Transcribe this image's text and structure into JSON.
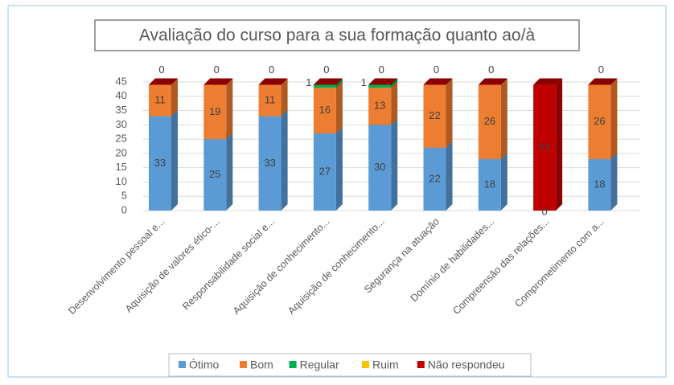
{
  "chart_data": {
    "type": "bar3d_stacked",
    "title": "Avaliação do curso para a sua formação quanto ao/à",
    "categories": [
      "Desenvolvimento pessoal e...",
      "Aquisição de valores ético-...",
      "Responsabilidade social e...",
      "Aquisição de conhecimento...",
      "Aquisição de conhecimento...",
      "Segurança na atuação",
      "Domínio de habilidades...",
      "Compreensão das relações...",
      "Comprometimento com a..."
    ],
    "series": [
      {
        "name": "Ótimo",
        "color": "#5b9bd5",
        "side": "#41719c",
        "values": [
          33,
          25,
          33,
          27,
          30,
          22,
          18,
          0,
          18
        ]
      },
      {
        "name": "Bom",
        "color": "#ed7d31",
        "side": "#ae5a21",
        "values": [
          11,
          19,
          11,
          16,
          13,
          22,
          26,
          null,
          26
        ]
      },
      {
        "name": "Regular",
        "color": "#00b050",
        "side": "#00813b",
        "values": [
          null,
          null,
          null,
          1,
          1,
          null,
          null,
          null,
          null
        ]
      },
      {
        "name": "Ruim",
        "color": "#ffc000",
        "side": "#bc8c00",
        "values": [
          null,
          null,
          null,
          null,
          null,
          null,
          null,
          null,
          null
        ]
      },
      {
        "name": "Não respondeu",
        "color": "#c00000",
        "side": "#8b0000",
        "values": [
          0,
          0,
          0,
          0,
          0,
          0,
          0,
          44,
          0
        ]
      }
    ],
    "ylim": [
      0,
      45
    ],
    "yticks": [
      0,
      5,
      10,
      15,
      20,
      25,
      30,
      35,
      40,
      45
    ],
    "grid": true,
    "legend": "bottom"
  }
}
